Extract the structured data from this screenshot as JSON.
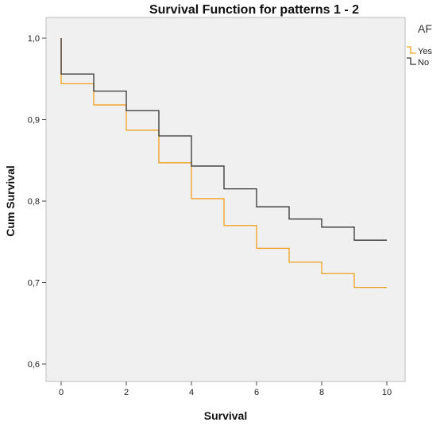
{
  "chart_data": {
    "type": "line",
    "step": true,
    "title": "Survival Function for patterns 1 - 2",
    "xlabel": "Survival",
    "ylabel": "Cum Survival",
    "xlim": [
      0,
      10
    ],
    "ylim": [
      0.6,
      1.0
    ],
    "x_ticks": [
      0,
      2,
      4,
      6,
      8,
      10
    ],
    "y_ticks": [
      0.6,
      0.7,
      0.8,
      0.9,
      1.0
    ],
    "y_tick_labels": [
      "0,6",
      "0,7",
      "0,8",
      "0,9",
      "1,0"
    ],
    "grid": false,
    "plot_background": "#f0f0f0",
    "legend": {
      "title": "AF",
      "position": "top-right"
    },
    "series": [
      {
        "name": "Yes",
        "color": "#f0a020",
        "x": [
          0,
          0,
          1,
          2,
          3,
          4,
          5,
          6,
          7,
          8,
          9,
          10
        ],
        "y": [
          1.0,
          0.944,
          0.918,
          0.887,
          0.847,
          0.803,
          0.77,
          0.742,
          0.725,
          0.711,
          0.694,
          0.694
        ]
      },
      {
        "name": "No",
        "color": "#333333",
        "x": [
          0,
          0,
          1,
          2,
          3,
          4,
          5,
          6,
          7,
          8,
          9,
          10
        ],
        "y": [
          1.0,
          0.956,
          0.935,
          0.911,
          0.88,
          0.843,
          0.815,
          0.793,
          0.778,
          0.768,
          0.752,
          0.752
        ]
      }
    ]
  }
}
